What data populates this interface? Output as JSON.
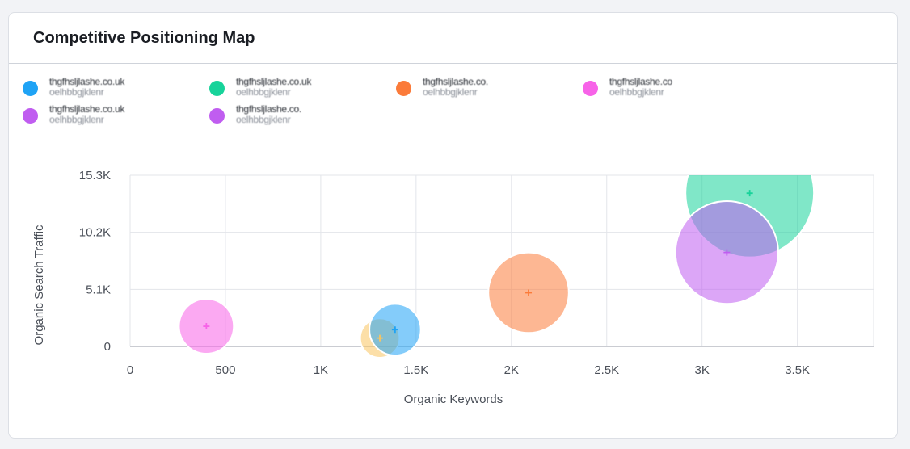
{
  "card": {
    "title": "Competitive Positioning Map"
  },
  "legend": [
    {
      "label": "thgfhsljlashe.co.uk",
      "sub": "oelhbbgjklenr",
      "color": "#1fa3f5"
    },
    {
      "label": "thgfhsljlashe.co.uk",
      "sub": "oelhbbgjklenr",
      "color": "#17d39a"
    },
    {
      "label": "thgfhsljlashe.co.",
      "sub": "oelhbbgjklenr",
      "color": "#fb7b3a"
    },
    {
      "label": "thgfhsljlashe.co",
      "sub": "oelhbbgjklenr",
      "color": "#f763e8"
    },
    {
      "label": "thgfhsljlashe.co.uk",
      "sub": "oelhbbgjklenr",
      "color": "#c05df0"
    },
    {
      "label": "thgfhsljlashe.co.",
      "sub": "oelhbbgjklenr",
      "color": "#c05df0"
    }
  ],
  "chart_data": {
    "type": "scatter",
    "subtype": "bubble",
    "xlabel": "Organic Keywords",
    "ylabel": "Organic Search Traffic",
    "xlim": [
      0,
      3900
    ],
    "ylim": [
      0,
      15300
    ],
    "x_ticks": [
      0,
      500,
      1000,
      1500,
      2000,
      2500,
      3000,
      3500
    ],
    "x_tick_labels": [
      "0",
      "500",
      "1K",
      "1.5K",
      "2K",
      "2.5K",
      "3K",
      "3.5K"
    ],
    "y_ticks": [
      0,
      5100,
      10200,
      15300
    ],
    "y_tick_labels": [
      "0",
      "5.1K",
      "10.2K",
      "15.3K"
    ],
    "grid": true,
    "series": [
      {
        "x": 400,
        "y": 1800,
        "size": 32,
        "color": "#f763e8"
      },
      {
        "x": 1310,
        "y": 750,
        "size": 23,
        "color": "#f9c560"
      },
      {
        "x": 1390,
        "y": 1500,
        "size": 30,
        "color": "#1fa3f5"
      },
      {
        "x": 2090,
        "y": 4800,
        "size": 47,
        "color": "#fb7b3a"
      },
      {
        "x": 3250,
        "y": 13700,
        "size": 75,
        "color": "#17d39a"
      },
      {
        "x": 3130,
        "y": 8400,
        "size": 60,
        "color": "#c05df0"
      }
    ]
  }
}
